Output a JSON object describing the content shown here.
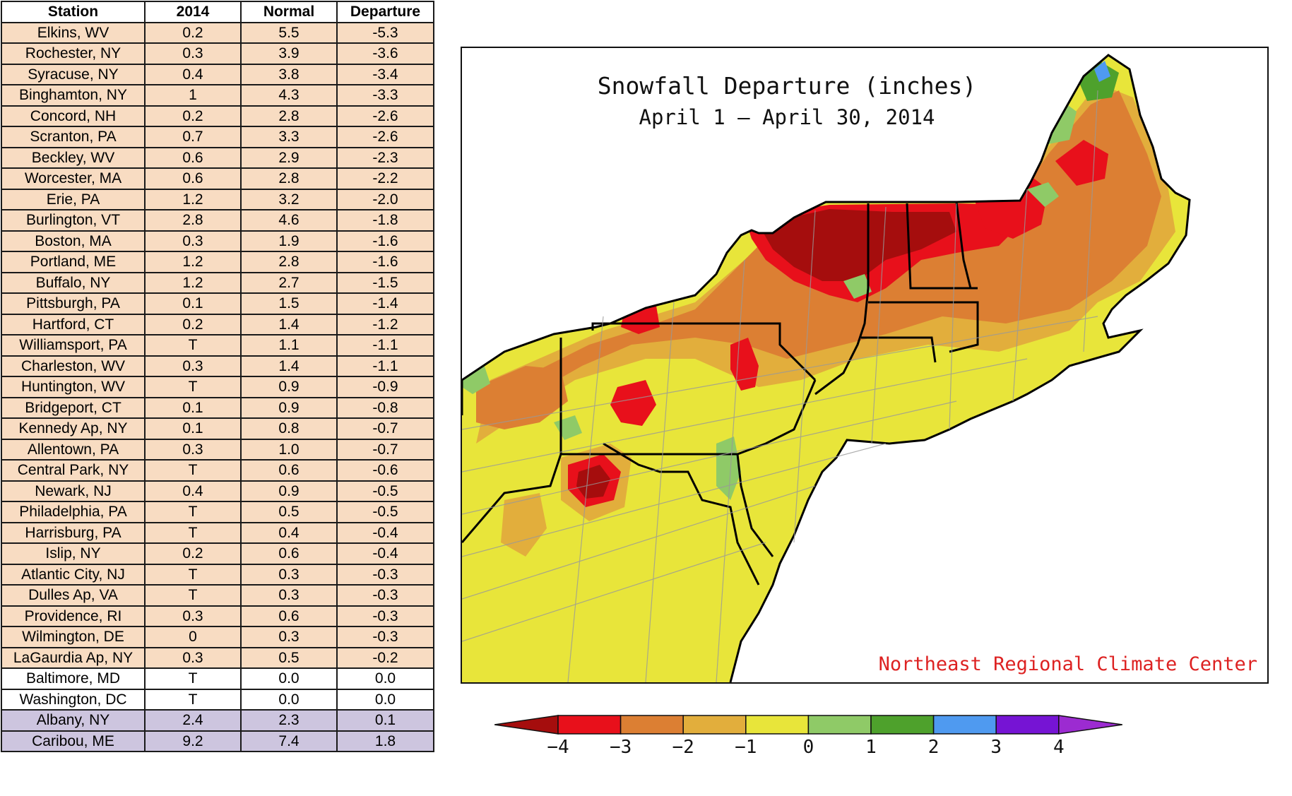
{
  "table": {
    "headers": [
      "Station",
      "2014",
      "Normal",
      "Departure"
    ],
    "rows": [
      {
        "station": "Elkins, WV",
        "y2014": "0.2",
        "normal": "5.5",
        "departure": "-5.3",
        "group": "below"
      },
      {
        "station": "Rochester, NY",
        "y2014": "0.3",
        "normal": "3.9",
        "departure": "-3.6",
        "group": "below"
      },
      {
        "station": "Syracuse, NY",
        "y2014": "0.4",
        "normal": "3.8",
        "departure": "-3.4",
        "group": "below"
      },
      {
        "station": "Binghamton, NY",
        "y2014": "1",
        "normal": "4.3",
        "departure": "-3.3",
        "group": "below"
      },
      {
        "station": "Concord, NH",
        "y2014": "0.2",
        "normal": "2.8",
        "departure": "-2.6",
        "group": "below"
      },
      {
        "station": "Scranton, PA",
        "y2014": "0.7",
        "normal": "3.3",
        "departure": "-2.6",
        "group": "below"
      },
      {
        "station": "Beckley, WV",
        "y2014": "0.6",
        "normal": "2.9",
        "departure": "-2.3",
        "group": "below"
      },
      {
        "station": "Worcester, MA",
        "y2014": "0.6",
        "normal": "2.8",
        "departure": "-2.2",
        "group": "below"
      },
      {
        "station": "Erie, PA",
        "y2014": "1.2",
        "normal": "3.2",
        "departure": "-2.0",
        "group": "below"
      },
      {
        "station": "Burlington, VT",
        "y2014": "2.8",
        "normal": "4.6",
        "departure": "-1.8",
        "group": "below"
      },
      {
        "station": "Boston, MA",
        "y2014": "0.3",
        "normal": "1.9",
        "departure": "-1.6",
        "group": "below"
      },
      {
        "station": "Portland, ME",
        "y2014": "1.2",
        "normal": "2.8",
        "departure": "-1.6",
        "group": "below"
      },
      {
        "station": "Buffalo, NY",
        "y2014": "1.2",
        "normal": "2.7",
        "departure": "-1.5",
        "group": "below"
      },
      {
        "station": "Pittsburgh, PA",
        "y2014": "0.1",
        "normal": "1.5",
        "departure": "-1.4",
        "group": "below"
      },
      {
        "station": "Hartford, CT",
        "y2014": "0.2",
        "normal": "1.4",
        "departure": "-1.2",
        "group": "below"
      },
      {
        "station": "Williamsport, PA",
        "y2014": "T",
        "normal": "1.1",
        "departure": "-1.1",
        "group": "below"
      },
      {
        "station": "Charleston, WV",
        "y2014": "0.3",
        "normal": "1.4",
        "departure": "-1.1",
        "group": "below"
      },
      {
        "station": "Huntington, WV",
        "y2014": "T",
        "normal": "0.9",
        "departure": "-0.9",
        "group": "below"
      },
      {
        "station": "Bridgeport, CT",
        "y2014": "0.1",
        "normal": "0.9",
        "departure": "-0.8",
        "group": "below"
      },
      {
        "station": "Kennedy Ap, NY",
        "y2014": "0.1",
        "normal": "0.8",
        "departure": "-0.7",
        "group": "below"
      },
      {
        "station": "Allentown, PA",
        "y2014": "0.3",
        "normal": "1.0",
        "departure": "-0.7",
        "group": "below"
      },
      {
        "station": "Central Park, NY",
        "y2014": "T",
        "normal": "0.6",
        "departure": "-0.6",
        "group": "below"
      },
      {
        "station": "Newark, NJ",
        "y2014": "0.4",
        "normal": "0.9",
        "departure": "-0.5",
        "group": "below"
      },
      {
        "station": "Philadelphia, PA",
        "y2014": "T",
        "normal": "0.5",
        "departure": "-0.5",
        "group": "below"
      },
      {
        "station": "Harrisburg, PA",
        "y2014": "T",
        "normal": "0.4",
        "departure": "-0.4",
        "group": "below"
      },
      {
        "station": "Islip, NY",
        "y2014": "0.2",
        "normal": "0.6",
        "departure": "-0.4",
        "group": "below"
      },
      {
        "station": "Atlantic City, NJ",
        "y2014": "T",
        "normal": "0.3",
        "departure": "-0.3",
        "group": "below"
      },
      {
        "station": "Dulles Ap, VA",
        "y2014": "T",
        "normal": "0.3",
        "departure": "-0.3",
        "group": "below"
      },
      {
        "station": "Providence, RI",
        "y2014": "0.3",
        "normal": "0.6",
        "departure": "-0.3",
        "group": "below"
      },
      {
        "station": "Wilmington, DE",
        "y2014": "0",
        "normal": "0.3",
        "departure": "-0.3",
        "group": "below"
      },
      {
        "station": "LaGaurdia Ap, NY",
        "y2014": "0.3",
        "normal": "0.5",
        "departure": "-0.2",
        "group": "below"
      },
      {
        "station": "Baltimore, MD",
        "y2014": "T",
        "normal": "0.0",
        "departure": "0.0",
        "group": "normal"
      },
      {
        "station": "Washington, DC",
        "y2014": "T",
        "normal": "0.0",
        "departure": "0.0",
        "group": "normal"
      },
      {
        "station": "Albany, NY",
        "y2014": "2.4",
        "normal": "2.3",
        "departure": "0.1",
        "group": "above"
      },
      {
        "station": "Caribou, ME",
        "y2014": "9.2",
        "normal": "7.4",
        "departure": "1.8",
        "group": "above"
      }
    ],
    "colors": {
      "below": "#f8dcc2",
      "normal": "#ffffff",
      "above": "#cdc5df"
    }
  },
  "map": {
    "title": "Snowfall Departure (inches)",
    "subtitle": "April 1 — April 30, 2014",
    "credit": "Northeast Regional Climate Center",
    "credit_color": "#dd2222"
  },
  "legend": {
    "labels": [
      "−4",
      "−3",
      "−2",
      "−1",
      "0",
      "1",
      "2",
      "3",
      "4"
    ],
    "colors": [
      "#a50d0d",
      "#e8101b",
      "#dc7f33",
      "#e2ae3c",
      "#e8e53a",
      "#8fca67",
      "#4ea12c",
      "#4f9af0",
      "#7614d4",
      "#9c2bd1"
    ]
  }
}
